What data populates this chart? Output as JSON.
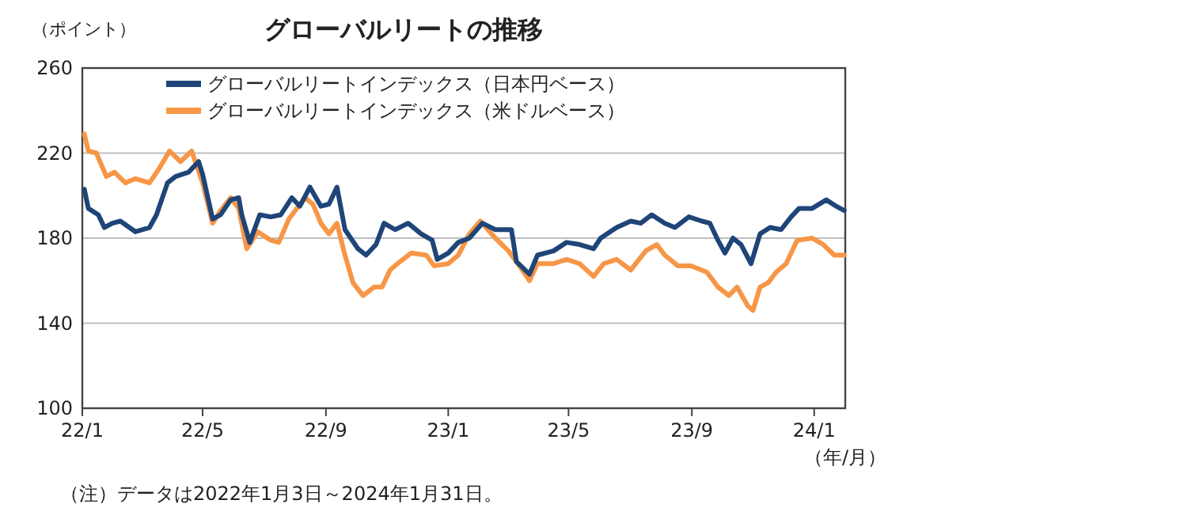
{
  "chart_data": {
    "type": "line",
    "title": "グローバルリートの推移",
    "ylabel": "（ポイント）",
    "xlabel": "（年/月）",
    "annotations": [
      "（注）データは2022年1月3日～2024年1月31日。"
    ],
    "xlim": [
      "2022-01-01",
      "2024-02-01"
    ],
    "ylim": [
      100,
      260
    ],
    "xticks": [
      {
        "value": "2022-01-01",
        "label": "22/1"
      },
      {
        "value": "2022-05-01",
        "label": "22/5"
      },
      {
        "value": "2022-09-01",
        "label": "22/9"
      },
      {
        "value": "2023-01-01",
        "label": "23/1"
      },
      {
        "value": "2023-05-01",
        "label": "23/5"
      },
      {
        "value": "2023-09-01",
        "label": "23/9"
      },
      {
        "value": "2024-01-01",
        "label": "24/1"
      }
    ],
    "yticks": [
      100,
      140,
      180,
      220,
      260
    ],
    "grid": "y",
    "legend": "top",
    "series": [
      {
        "name": "グローバルリートインデックス（日本円ベース）",
        "color": "#1f4578",
        "x": [
          "2022-01-03",
          "2022-01-07",
          "2022-01-17",
          "2022-01-23",
          "2022-01-31",
          "2022-02-08",
          "2022-02-23",
          "2022-03-09",
          "2022-03-16",
          "2022-03-27",
          "2022-04-04",
          "2022-04-17",
          "2022-04-27",
          "2022-05-01",
          "2022-05-11",
          "2022-05-19",
          "2022-05-29",
          "2022-06-06",
          "2022-06-09",
          "2022-06-17",
          "2022-06-27",
          "2022-07-08",
          "2022-07-18",
          "2022-07-29",
          "2022-08-06",
          "2022-08-16",
          "2022-08-27",
          "2022-09-04",
          "2022-09-12",
          "2022-09-20",
          "2022-10-03",
          "2022-10-11",
          "2022-10-21",
          "2022-10-29",
          "2022-11-09",
          "2022-11-22",
          "2022-12-05",
          "2022-12-16",
          "2022-12-21",
          "2023-01-01",
          "2023-01-11",
          "2023-01-22",
          "2023-02-04",
          "2023-02-17",
          "2023-03-05",
          "2023-03-10",
          "2023-03-23",
          "2023-03-31",
          "2023-04-16",
          "2023-04-29",
          "2023-05-12",
          "2023-05-26",
          "2023-06-02",
          "2023-06-18",
          "2023-07-02",
          "2023-07-12",
          "2023-07-23",
          "2023-08-05",
          "2023-08-15",
          "2023-08-29",
          "2023-09-11",
          "2023-09-19",
          "2023-09-27",
          "2023-10-04",
          "2023-10-12",
          "2023-10-20",
          "2023-10-30",
          "2023-11-08",
          "2023-11-18",
          "2023-11-29",
          "2023-12-09",
          "2023-12-17",
          "2023-12-30",
          "2024-01-13",
          "2024-01-23",
          "2024-01-31"
        ],
        "values": [
          203,
          194,
          191,
          185,
          187,
          188,
          183,
          185,
          191,
          206,
          209,
          211,
          216,
          210,
          189,
          191,
          198,
          199,
          191,
          178,
          191,
          190,
          191,
          199,
          195,
          204,
          195,
          196,
          204,
          184,
          175,
          172,
          177,
          187,
          184,
          187,
          182,
          179,
          170,
          173,
          178,
          180,
          187,
          184,
          184,
          169,
          163,
          172,
          174,
          178,
          177,
          175,
          180,
          185,
          188,
          187,
          191,
          187,
          185,
          190,
          188,
          187,
          179,
          173,
          180,
          177,
          168,
          182,
          185,
          184,
          190,
          194,
          194,
          198,
          195,
          193
        ]
      },
      {
        "name": "グローバルリートインデックス（米ドルベース）",
        "color": "#f79646",
        "x": [
          "2022-01-03",
          "2022-01-07",
          "2022-01-15",
          "2022-01-25",
          "2022-02-02",
          "2022-02-13",
          "2022-02-23",
          "2022-03-09",
          "2022-03-19",
          "2022-03-29",
          "2022-04-09",
          "2022-04-20",
          "2022-05-01",
          "2022-05-11",
          "2022-05-19",
          "2022-05-29",
          "2022-06-06",
          "2022-06-14",
          "2022-06-25",
          "2022-07-08",
          "2022-07-16",
          "2022-07-26",
          "2022-08-11",
          "2022-08-19",
          "2022-08-27",
          "2022-09-04",
          "2022-09-12",
          "2022-09-20",
          "2022-09-28",
          "2022-10-08",
          "2022-10-19",
          "2022-10-27",
          "2022-11-04",
          "2022-11-14",
          "2022-11-25",
          "2022-12-10",
          "2022-12-18",
          "2023-01-01",
          "2023-01-11",
          "2023-01-22",
          "2023-02-02",
          "2023-02-17",
          "2023-03-02",
          "2023-03-13",
          "2023-03-23",
          "2023-03-31",
          "2023-04-16",
          "2023-04-29",
          "2023-05-12",
          "2023-05-26",
          "2023-06-05",
          "2023-06-18",
          "2023-07-02",
          "2023-07-17",
          "2023-07-28",
          "2023-08-05",
          "2023-08-18",
          "2023-08-31",
          "2023-09-16",
          "2023-09-27",
          "2023-10-08",
          "2023-10-16",
          "2023-10-27",
          "2023-11-01",
          "2023-11-08",
          "2023-11-16",
          "2023-11-24",
          "2023-12-04",
          "2023-12-15",
          "2023-12-30",
          "2024-01-10",
          "2024-01-21",
          "2024-01-31"
        ],
        "values": [
          229,
          221,
          220,
          209,
          211,
          206,
          208,
          206,
          213,
          221,
          216,
          221,
          206,
          187,
          193,
          199,
          194,
          175,
          183,
          179,
          178,
          189,
          199,
          196,
          187,
          182,
          187,
          172,
          159,
          153,
          157,
          157,
          165,
          169,
          173,
          172,
          167,
          168,
          172,
          182,
          188,
          180,
          174,
          167,
          160,
          168,
          168,
          170,
          168,
          162,
          168,
          170,
          165,
          174,
          177,
          172,
          167,
          167,
          164,
          157,
          153,
          157,
          148,
          146,
          157,
          159,
          164,
          168,
          179,
          180,
          177,
          172,
          172
        ]
      }
    ]
  }
}
